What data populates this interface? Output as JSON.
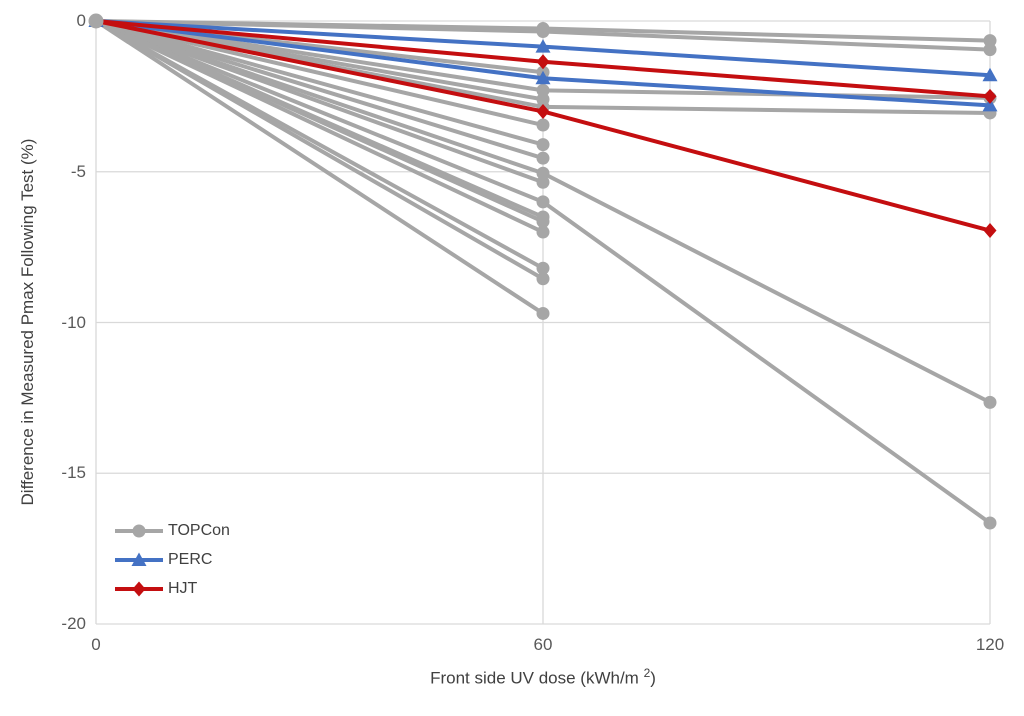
{
  "chart_data": {
    "type": "line",
    "title": "",
    "xlabel": "Front side UV dose (kWh/m 2)",
    "xlabel_parts": {
      "prefix": "Front side UV dose (kWh/m ",
      "sup": "2",
      "suffix": ")"
    },
    "ylabel": "Difference in Measured Pmax Following Test (%)",
    "xlim": [
      0,
      120
    ],
    "ylim": [
      -20,
      0
    ],
    "x_ticks": [
      {
        "value": 0,
        "label": "0"
      },
      {
        "value": 60,
        "label": "60"
      },
      {
        "value": 120,
        "label": "120"
      }
    ],
    "y_ticks": [
      {
        "value": 0,
        "label": "0"
      },
      {
        "value": -5,
        "label": "-5"
      },
      {
        "value": -10,
        "label": "-10"
      },
      {
        "value": -15,
        "label": "-15"
      },
      {
        "value": -20,
        "label": "-20"
      }
    ],
    "grid": true,
    "gridline_color": "#d9d9d9",
    "tick_label_color": "#595959",
    "axis_title_color": "#404040",
    "legend_position": "inside-bottom-left",
    "legend_marker_icons": [
      "circle-icon",
      "triangle-icon",
      "diamond-icon"
    ],
    "groups": [
      {
        "name": "TOPCon",
        "color": "#a6a6a6",
        "marker": "circle",
        "lines": [
          {
            "x": [
              0,
              60,
              120
            ],
            "y": [
              0,
              -0.25,
              -0.65
            ]
          },
          {
            "x": [
              0,
              60,
              120
            ],
            "y": [
              0,
              -0.35,
              -0.95
            ]
          },
          {
            "x": [
              0,
              60,
              120
            ],
            "y": [
              0,
              -2.3,
              -2.55
            ]
          },
          {
            "x": [
              0,
              60,
              120
            ],
            "y": [
              0,
              -2.85,
              -3.05
            ]
          },
          {
            "x": [
              0,
              60,
              120
            ],
            "y": [
              0,
              -5.05,
              -12.65
            ]
          },
          {
            "x": [
              0,
              60,
              120
            ],
            "y": [
              0,
              -6.0,
              -16.65
            ]
          },
          {
            "x": [
              0,
              60
            ],
            "y": [
              0,
              -1.7
            ]
          },
          {
            "x": [
              0,
              60
            ],
            "y": [
              0,
              -2.6
            ]
          },
          {
            "x": [
              0,
              60
            ],
            "y": [
              0,
              -3.45
            ]
          },
          {
            "x": [
              0,
              60
            ],
            "y": [
              0,
              -4.1
            ]
          },
          {
            "x": [
              0,
              60
            ],
            "y": [
              0,
              -4.55
            ]
          },
          {
            "x": [
              0,
              60
            ],
            "y": [
              0,
              -5.35
            ]
          },
          {
            "x": [
              0,
              60
            ],
            "y": [
              0,
              -6.5
            ]
          },
          {
            "x": [
              0,
              60
            ],
            "y": [
              0,
              -6.65
            ]
          },
          {
            "x": [
              0,
              60
            ],
            "y": [
              0,
              -7.0
            ]
          },
          {
            "x": [
              0,
              60
            ],
            "y": [
              0,
              -8.2
            ]
          },
          {
            "x": [
              0,
              60
            ],
            "y": [
              0,
              -8.55
            ]
          },
          {
            "x": [
              0,
              60
            ],
            "y": [
              0,
              -9.7
            ]
          }
        ]
      },
      {
        "name": "PERC",
        "color": "#4472c4",
        "marker": "triangle",
        "lines": [
          {
            "x": [
              0,
              60,
              120
            ],
            "y": [
              0,
              -0.85,
              -1.8
            ]
          },
          {
            "x": [
              0,
              60,
              120
            ],
            "y": [
              0,
              -1.9,
              -2.8
            ]
          }
        ]
      },
      {
        "name": "HJT",
        "color": "#c40e10",
        "marker": "diamond",
        "lines": [
          {
            "x": [
              0,
              60,
              120
            ],
            "y": [
              0,
              -1.35,
              -2.5
            ]
          },
          {
            "x": [
              0,
              60,
              120
            ],
            "y": [
              0,
              -3.0,
              -6.95
            ]
          }
        ]
      }
    ]
  }
}
